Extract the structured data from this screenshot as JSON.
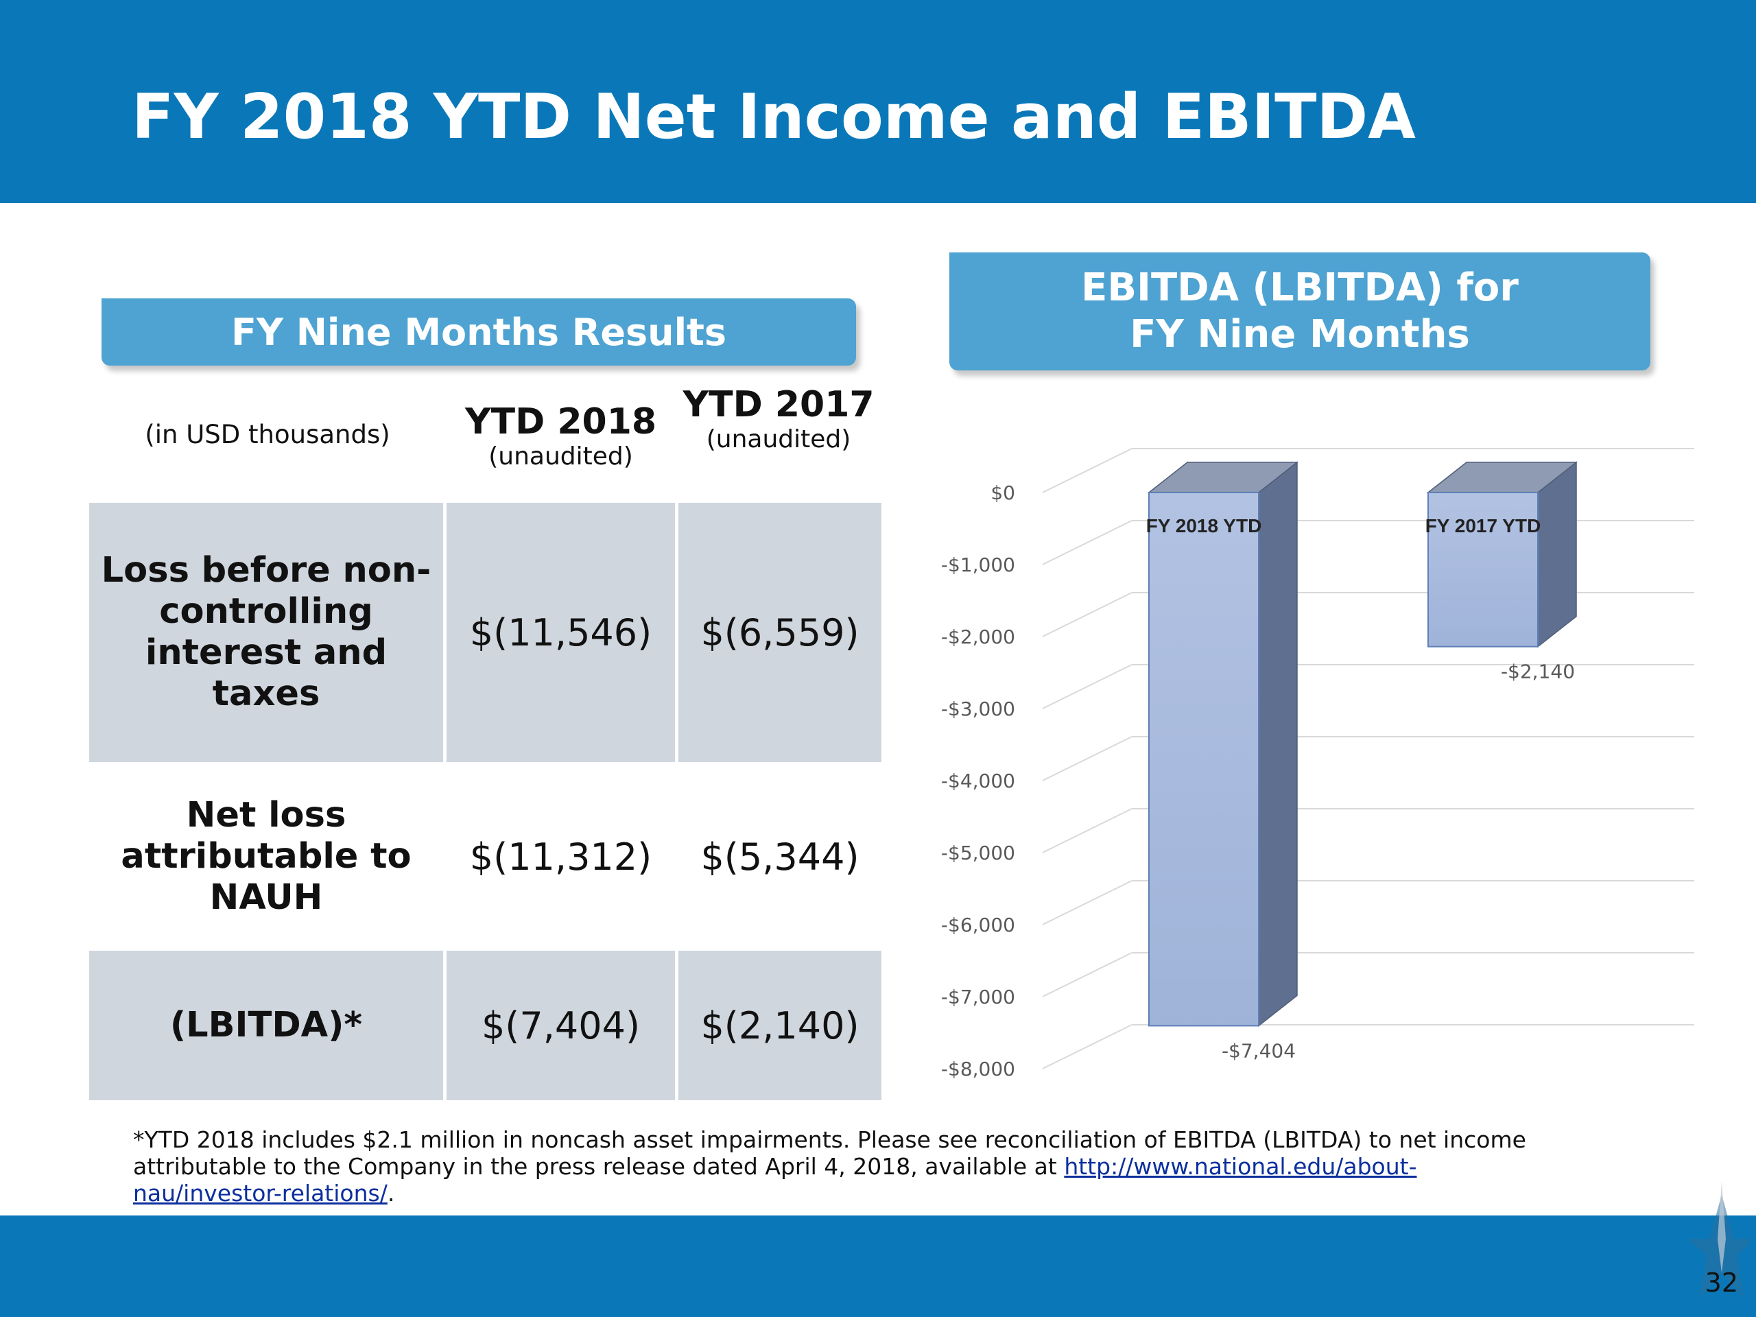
{
  "slide": {
    "title": "FY 2018 YTD Net Income and EBITDA",
    "page_number": "32"
  },
  "table": {
    "header": "FY Nine Months Results",
    "units_label": "(in USD thousands)",
    "columns": [
      {
        "title": "YTD 2018",
        "subtitle": "(unaudited)"
      },
      {
        "title": "YTD 2017",
        "subtitle": "(unaudited)"
      }
    ],
    "rows": [
      {
        "label": "Loss before non-controlling interest and taxes",
        "values": [
          "$(11,546)",
          "$(6,559)"
        ]
      },
      {
        "label": "Net loss attributable to NAUH",
        "values": [
          "$(11,312)",
          "$(5,344)"
        ]
      },
      {
        "label": "(LBITDA)*",
        "values": [
          "$(7,404)",
          "$(2,140)"
        ]
      }
    ]
  },
  "chart_header": {
    "line1": "EBITDA (LBITDA) for",
    "line2": "FY Nine Months"
  },
  "chart_data": {
    "type": "bar",
    "categories": [
      "FY 2018 YTD",
      "FY 2017 YTD"
    ],
    "values": [
      -7404,
      -2140
    ],
    "data_labels": [
      "-$7,404",
      "-$2,140"
    ],
    "y_tick_labels": [
      "$0",
      "-$1,000",
      "-$2,000",
      "-$3,000",
      "-$4,000",
      "-$5,000",
      "-$6,000",
      "-$7,000",
      "-$8,000"
    ],
    "ylim": [
      -8000,
      0
    ],
    "grid": true,
    "style": "3d-column",
    "bar_color": "#9fb3d9",
    "bar_side_color": "#5f6f8f",
    "bar_top_color": "#8e9bb3"
  },
  "footnote": {
    "text": "*YTD 2018 includes $2.1 million in noncash asset impairments.  Please see reconciliation of EBITDA (LBITDA)  to net income attributable to the Company in the press release dated April 4, 2018, available at ",
    "link_text": "http://www.national.edu/about-nau/investor-relations/",
    "suffix": "."
  }
}
